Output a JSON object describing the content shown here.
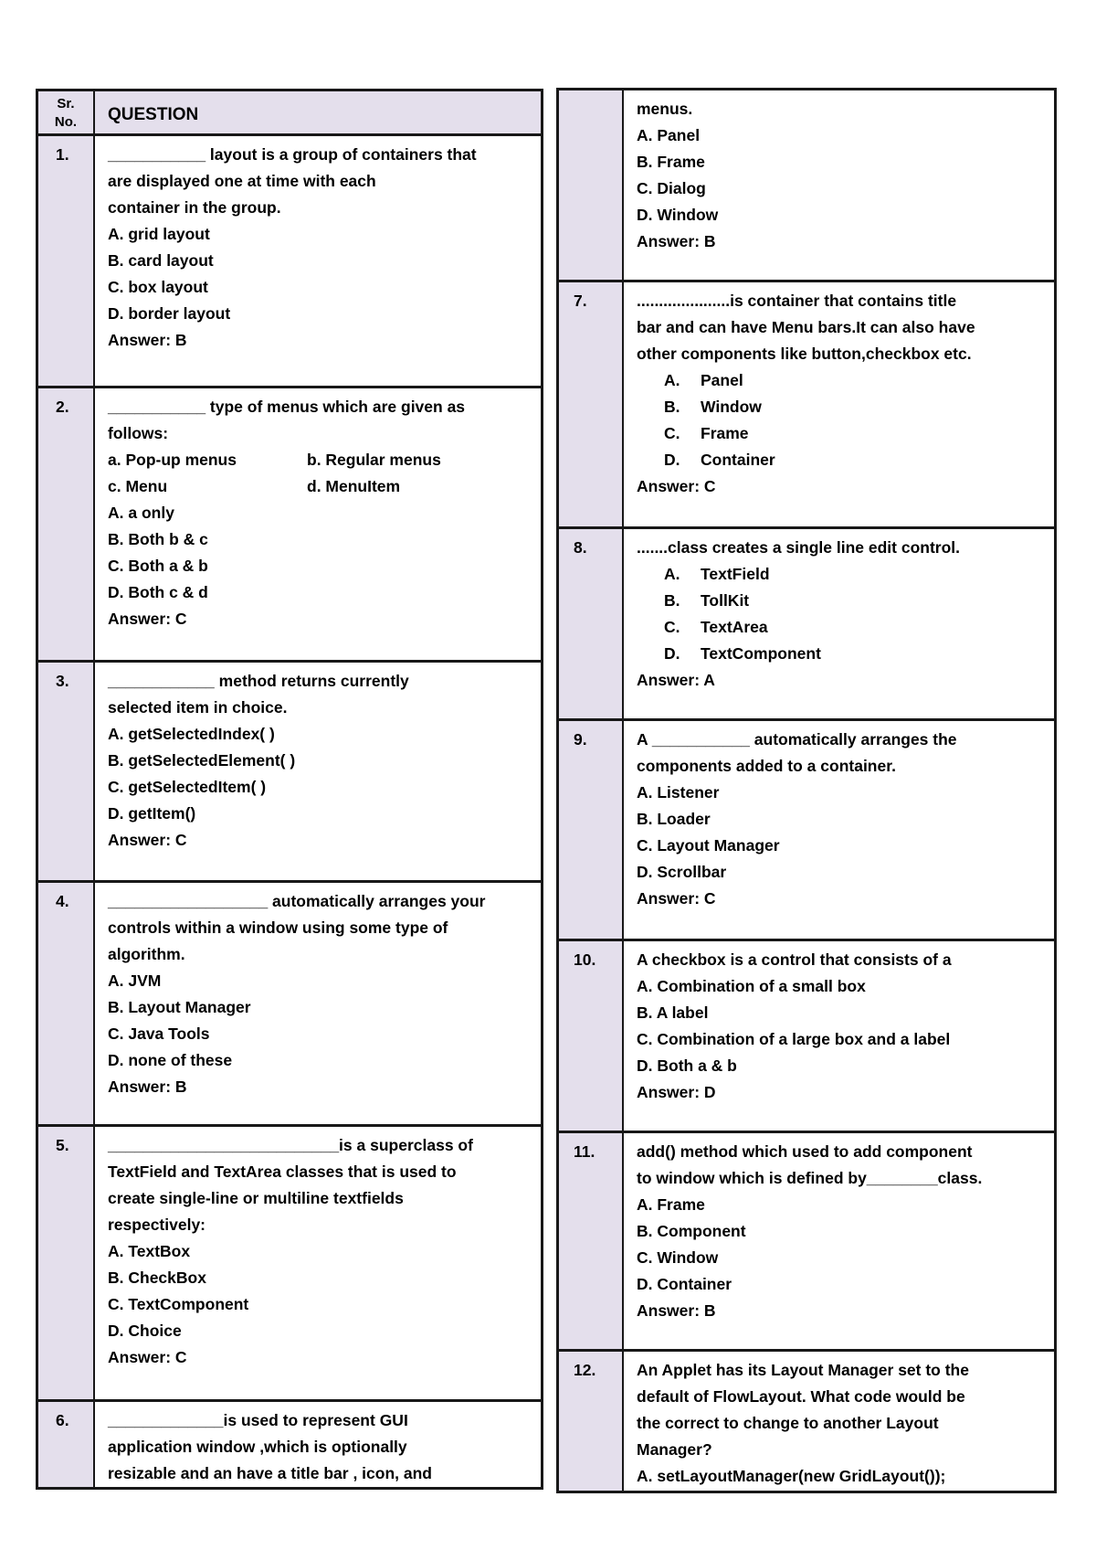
{
  "colors": {
    "number_cell_background": "#e4dfec",
    "border": "#181818",
    "text": "#000000",
    "page_background": "#ffffff"
  },
  "header": {
    "sr_no_line1": "Sr.",
    "sr_no_line2": "No.",
    "question": "QUESTION"
  },
  "left_rows": [
    {
      "no": "1.",
      "lines": [
        "___________ layout is a group of containers that",
        "are displayed one at time with each",
        "container in the group.",
        "A. grid layout",
        "B. card layout",
        "C. box layout",
        "D. border layout",
        "Answer: B"
      ]
    },
    {
      "no": "2.",
      "lines": [
        "___________ type of menus which are given as",
        "follows:",
        {
          "cols": [
            "a. Pop-up menus",
            "b. Regular menus"
          ]
        },
        {
          "cols": [
            "c. Menu",
            "d. MenuItem"
          ]
        },
        "A. a only",
        "B. Both b & c",
        "C. Both a & b",
        "D. Both c & d",
        "Answer: C"
      ]
    },
    {
      "no": "3.",
      "lines": [
        "____________ method returns currently",
        "selected item in choice.",
        "A. getSelectedIndex( )",
        "B. getSelectedElement( )",
        "C. getSelectedItem( )",
        "D. getItem()",
        "Answer: C"
      ]
    },
    {
      "no": "4.",
      "lines": [
        "__________________ automatically arranges your",
        "controls within a window using some type of",
        "algorithm.",
        "A. JVM",
        "B. Layout Manager",
        "C. Java Tools",
        "D. none of these",
        "Answer: B"
      ]
    },
    {
      "no": "5.",
      "lines": [
        "__________________________is a superclass of",
        "TextField and TextArea classes that is used to",
        "create single-line or multiline textfields",
        "respectively:",
        "A. TextBox",
        "B. CheckBox",
        "C. TextComponent",
        "D. Choice",
        "Answer: C"
      ]
    },
    {
      "no": "6.",
      "lines": [
        "_____________is used to represent GUI",
        "application window ,which is optionally",
        "resizable and an have a title bar , icon, and"
      ]
    }
  ],
  "right_rows": [
    {
      "no": "",
      "lines": [
        "menus.",
        "A. Panel",
        "B. Frame",
        "C. Dialog",
        "D. Window",
        "Answer: B"
      ]
    },
    {
      "no": "7.",
      "lines": [
        ".....................is container that contains title",
        "bar and can have Menu bars.It can also have",
        "other components like button,checkbox etc.",
        {
          "opt": "A.",
          "text": "Panel"
        },
        {
          "opt": "B.",
          "text": "Window"
        },
        {
          "opt": "C.",
          "text": "Frame"
        },
        {
          "opt": "D.",
          "text": "Container"
        },
        "Answer: C"
      ]
    },
    {
      "no": "8.",
      "lines": [
        ".......class creates a single line edit control.",
        {
          "opt": "A.",
          "text": "TextField"
        },
        {
          "opt": "B.",
          "text": "TollKit"
        },
        {
          "opt": "C.",
          "text": "TextArea"
        },
        {
          "opt": "D.",
          "text": "TextComponent"
        },
        "Answer: A"
      ]
    },
    {
      "no": "9.",
      "lines": [
        "A ___________ automatically arranges the",
        "components added to a container.",
        "A. Listener",
        "B. Loader",
        "C. Layout Manager",
        "D. Scrollbar",
        "Answer: C"
      ]
    },
    {
      "no": "10.",
      "lines": [
        "A checkbox is a control that consists of a",
        "A. Combination of a small box",
        "B. A label",
        "C. Combination of a large box and a label",
        "D. Both a & b",
        "Answer: D"
      ]
    },
    {
      "no": "11.",
      "lines": [
        "add() method which used to add component",
        "to window which is defined by________class.",
        "A. Frame",
        "B. Component",
        "C. Window",
        "D. Container",
        "Answer: B"
      ]
    },
    {
      "no": "12.",
      "lines": [
        "An Applet has its Layout Manager set to the",
        "default of FlowLayout. What code would be",
        "the correct to change to another Layout",
        "Manager?",
        "A. setLayoutManager(new GridLayout());"
      ]
    }
  ]
}
